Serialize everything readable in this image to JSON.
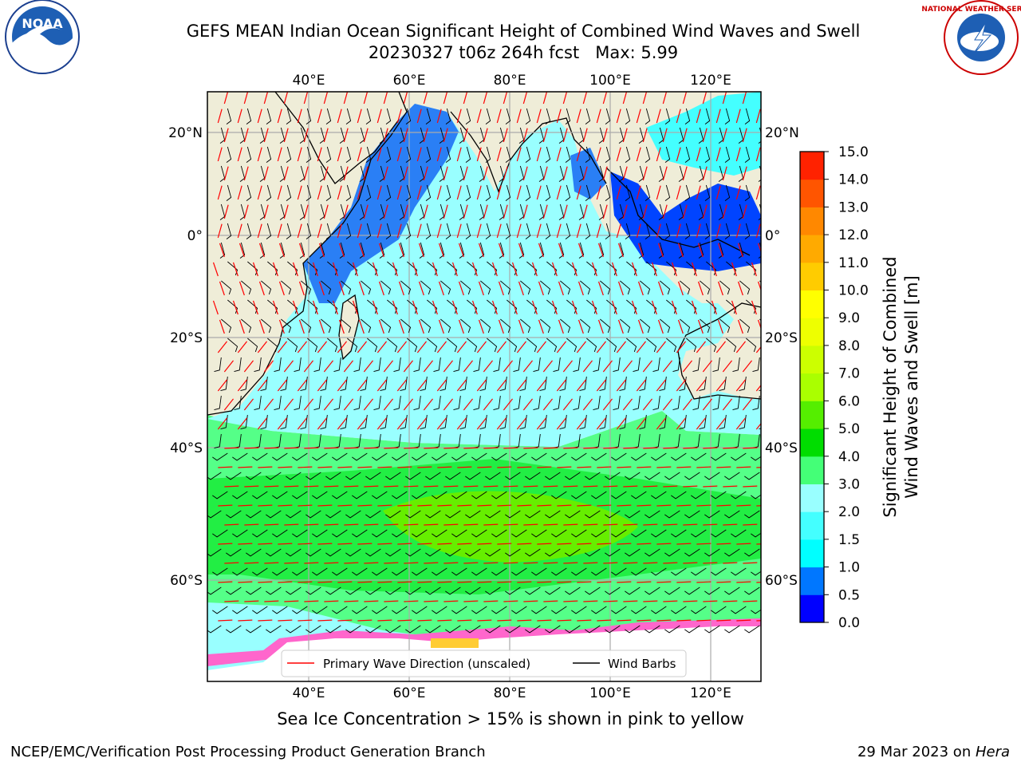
{
  "title": {
    "line1": "GEFS MEAN Indian Ocean Significant Height of Combined Wind Waves and Swell",
    "line2": "20230327 t06z 264h fcst   Max: 5.99"
  },
  "map": {
    "lon_labels": [
      "40°E",
      "60°E",
      "80°E",
      "100°E",
      "120°E"
    ],
    "lat_labels": [
      "20°N",
      "0°",
      "20°S",
      "40°S",
      "60°S"
    ],
    "extent": {
      "lon_min": 20,
      "lon_max": 130,
      "lat_min": -70,
      "lat_max": 28
    },
    "legend": {
      "wave_direction": "Primary Wave Direction (unscaled)",
      "wind_barbs": "Wind Barbs",
      "wave_color": "#ff0000",
      "barb_color": "#000000"
    }
  },
  "colorbar": {
    "label_line1": "Significant Height of Combined",
    "label_line2": "Wind Waves and Swell [m]",
    "ticks": [
      "0.0",
      "0.5",
      "1.0",
      "1.5",
      "2.0",
      "3.0",
      "4.0",
      "5.0",
      "6.0",
      "7.0",
      "8.0",
      "9.0",
      "10.0",
      "11.0",
      "12.0",
      "13.0",
      "14.0",
      "15.0"
    ],
    "colors": [
      "#0000ff",
      "#0077ff",
      "#00ffff",
      "#44ffff",
      "#99ffff",
      "#44ff77",
      "#00dd00",
      "#55ee00",
      "#aaff00",
      "#ccff00",
      "#eeff00",
      "#ffff00",
      "#ffcc00",
      "#ffaa00",
      "#ff8800",
      "#ff5500",
      "#ff2200",
      "#ff0000"
    ]
  },
  "caption": "Sea Ice Concentration > 15% is shown in pink to yellow",
  "footer": {
    "left": "NCEP/EMC/Verification Post Processing Product Generation Branch",
    "right_date": "29 Mar 2023 on ",
    "right_host": "Hera"
  },
  "logos": {
    "left_text": "NOAA",
    "right_text": "NATIONAL WEATHER SERVICE"
  }
}
